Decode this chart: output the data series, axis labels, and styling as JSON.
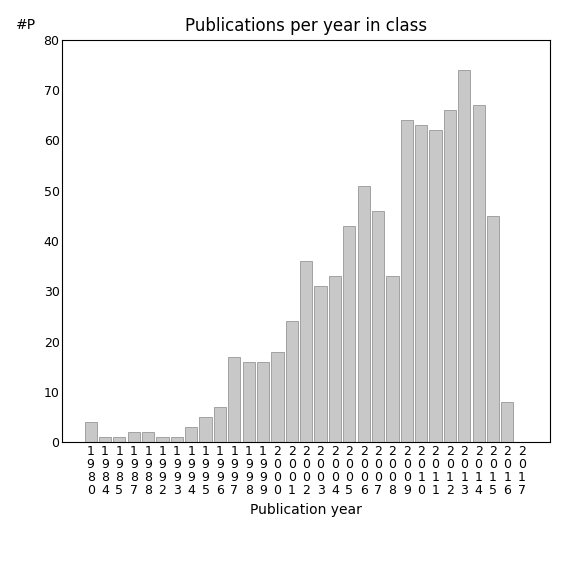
{
  "title": "Publications per year in class",
  "xlabel": "Publication year",
  "ylabel": "#P",
  "years": [
    "1980",
    "1984",
    "1985",
    "1987",
    "1988",
    "1992",
    "1993",
    "1994",
    "1995",
    "1996",
    "1997",
    "1998",
    "1999",
    "2000",
    "2001",
    "2002",
    "2003",
    "2004",
    "2005",
    "2006",
    "2007",
    "2008",
    "2009",
    "2010",
    "2011",
    "2012",
    "2013",
    "2014",
    "2015",
    "2016",
    "2017"
  ],
  "values": [
    4,
    1,
    1,
    2,
    2,
    1,
    1,
    3,
    5,
    7,
    17,
    16,
    16,
    18,
    24,
    36,
    31,
    33,
    43,
    51,
    46,
    33,
    64,
    63,
    62,
    66,
    74,
    67,
    45,
    8,
    0
  ],
  "bar_color": "#c8c8c8",
  "bar_edge_color": "#888888",
  "ylim": [
    0,
    80
  ],
  "yticks": [
    0,
    10,
    20,
    30,
    40,
    50,
    60,
    70,
    80
  ],
  "background_color": "#ffffff",
  "title_fontsize": 12,
  "label_fontsize": 10,
  "tick_fontsize": 9
}
